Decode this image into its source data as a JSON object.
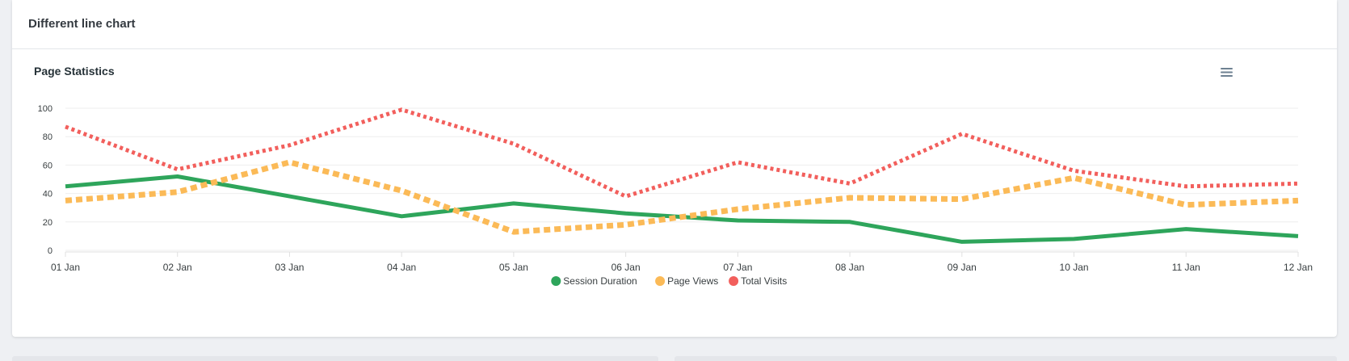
{
  "page": {
    "title": "Different line chart"
  },
  "chart_data": {
    "type": "line",
    "title": "Page Statistics",
    "categories": [
      "01 Jan",
      "02 Jan",
      "03 Jan",
      "04 Jan",
      "05 Jan",
      "06 Jan",
      "07 Jan",
      "08 Jan",
      "09 Jan",
      "10 Jan",
      "11 Jan",
      "12 Jan"
    ],
    "ylim": [
      0,
      100
    ],
    "yticks": [
      0,
      20,
      40,
      60,
      80,
      100
    ],
    "ytick_labels": [
      "0",
      "20",
      "40",
      "60",
      "80",
      "100"
    ],
    "xlabel": "",
    "ylabel": "",
    "grid": true,
    "legend_position": "bottom-center",
    "series": [
      {
        "name": "Session Duration",
        "color": "#2ea55b",
        "style": "solid",
        "values": [
          45,
          52,
          38,
          24,
          33,
          26,
          21,
          20,
          6,
          8,
          15,
          10
        ]
      },
      {
        "name": "Page Views",
        "color": "#fbba57",
        "style": "dashed",
        "values": [
          35,
          41,
          62,
          42,
          13,
          18,
          29,
          37,
          36,
          51,
          32,
          35
        ]
      },
      {
        "name": "Total Visits",
        "color": "#f25f5c",
        "style": "dotted",
        "values": [
          87,
          57,
          74,
          99,
          75,
          38,
          62,
          47,
          82,
          56,
          45,
          47
        ]
      }
    ]
  },
  "toolbar": {
    "menu_icon": "hamburger-menu-icon"
  }
}
